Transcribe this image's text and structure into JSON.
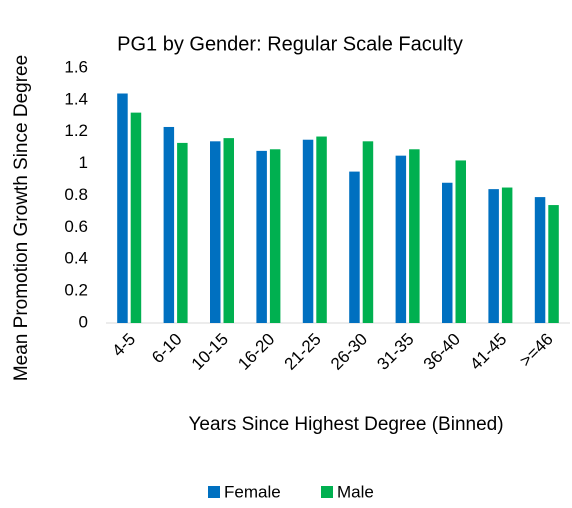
{
  "chart_data": {
    "type": "bar",
    "title": "PG1 by Gender: Regular Scale Faculty",
    "x_label": "Years Since Highest Degree (Binned)",
    "y_label": "Mean Promotion Growth Since Degree",
    "categories": [
      "4-5",
      "6-10",
      "10-15",
      "16-20",
      "21-25",
      "26-30",
      "31-35",
      "36-40",
      "41-45",
      ">=46"
    ],
    "series": [
      {
        "name": "Female",
        "color": "#0070c0",
        "values": [
          1.44,
          1.23,
          1.14,
          1.08,
          1.15,
          0.95,
          1.05,
          0.88,
          0.84,
          0.79
        ]
      },
      {
        "name": "Male",
        "color": "#00b050",
        "values": [
          1.32,
          1.13,
          1.16,
          1.09,
          1.17,
          1.14,
          1.09,
          1.02,
          0.85,
          0.74
        ]
      }
    ],
    "ylim": [
      0,
      1.6
    ],
    "yticks": [
      0,
      0.2,
      0.4,
      0.6,
      0.8,
      1,
      1.2,
      1.4,
      1.6
    ],
    "grid": false,
    "legend": "bottom"
  }
}
